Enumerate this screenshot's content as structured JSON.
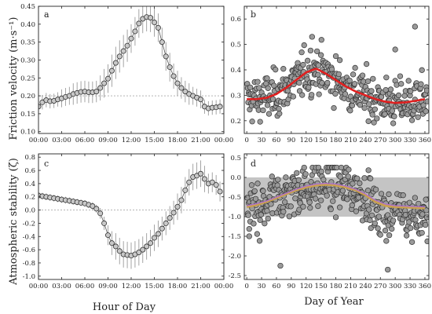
{
  "figure": {
    "ylabel_top": "Friction velocity (m·s⁻¹)",
    "ylabel_bottom": "Atmospheric stability (ζ)",
    "xlabel_left": "Hour of Day",
    "xlabel_right": "Day of Year"
  },
  "colors": {
    "marker_fill": "#9a9a9a",
    "marker_edge": "#333333",
    "fit_red": "#e02020",
    "fit_orange": "#c8a050",
    "fit_purple": "#b070d0",
    "band_gray": "#c4c4c4",
    "errorbar": "#9a9a9a",
    "refline": "#888888"
  },
  "chart_data": [
    {
      "panel": "a",
      "type": "scatter",
      "x_ticks": [
        "00:00",
        "03:00",
        "06:00",
        "09:00",
        "12:00",
        "15:00",
        "18:00",
        "21:00",
        "00:00"
      ],
      "y_ticks": [
        "0.10",
        "0.15",
        "0.20",
        "0.25",
        "0.30",
        "0.35",
        "0.40",
        "0.45"
      ],
      "xlim": [
        0,
        24
      ],
      "ylim": [
        0.095,
        0.45
      ],
      "reference_y": 0.2,
      "x": [
        0,
        0.5,
        1,
        1.5,
        2,
        2.5,
        3,
        3.5,
        4,
        4.5,
        5,
        5.5,
        6,
        6.5,
        7,
        7.5,
        8,
        8.5,
        9,
        9.5,
        10,
        10.5,
        11,
        11.5,
        12,
        12.5,
        13,
        13.5,
        14,
        14.5,
        15,
        15.5,
        16,
        16.5,
        17,
        17.5,
        18,
        18.5,
        19,
        19.5,
        20,
        20.5,
        21,
        21.5,
        22,
        22.5,
        23,
        23.5
      ],
      "y": [
        0.17,
        0.182,
        0.188,
        0.185,
        0.186,
        0.19,
        0.193,
        0.197,
        0.2,
        0.205,
        0.208,
        0.211,
        0.212,
        0.21,
        0.21,
        0.212,
        0.222,
        0.235,
        0.248,
        0.27,
        0.292,
        0.31,
        0.325,
        0.34,
        0.36,
        0.38,
        0.402,
        0.415,
        0.42,
        0.418,
        0.405,
        0.39,
        0.35,
        0.31,
        0.28,
        0.255,
        0.235,
        0.222,
        0.212,
        0.205,
        0.2,
        0.195,
        0.19,
        0.17,
        0.165,
        0.167,
        0.168,
        0.17
      ],
      "err": [
        0.02,
        0.02,
        0.02,
        0.02,
        0.02,
        0.02,
        0.025,
        0.025,
        0.025,
        0.03,
        0.03,
        0.03,
        0.03,
        0.03,
        0.03,
        0.03,
        0.035,
        0.04,
        0.04,
        0.045,
        0.045,
        0.045,
        0.045,
        0.045,
        0.04,
        0.04,
        0.04,
        0.04,
        0.04,
        0.04,
        0.04,
        0.04,
        0.04,
        0.04,
        0.04,
        0.035,
        0.035,
        0.03,
        0.03,
        0.03,
        0.025,
        0.025,
        0.025,
        0.02,
        0.02,
        0.02,
        0.02,
        0.02
      ]
    },
    {
      "panel": "b",
      "type": "scatter",
      "x_ticks": [
        "0",
        "30",
        "60",
        "90",
        "120",
        "150",
        "180",
        "210",
        "240",
        "270",
        "300",
        "330",
        "360"
      ],
      "y_ticks": [
        "0.2",
        "0.3",
        "0.4",
        "0.5",
        "0.6"
      ],
      "xlim": [
        -5,
        368
      ],
      "ylim": [
        0.15,
        0.65
      ],
      "fit_curve": {
        "x": [
          0,
          20,
          40,
          60,
          80,
          100,
          120,
          140,
          160,
          180,
          200,
          220,
          240,
          260,
          280,
          300,
          320,
          340,
          360
        ],
        "y": [
          0.285,
          0.285,
          0.29,
          0.305,
          0.33,
          0.36,
          0.39,
          0.405,
          0.385,
          0.36,
          0.335,
          0.315,
          0.3,
          0.285,
          0.275,
          0.27,
          0.272,
          0.278,
          0.285
        ]
      }
    },
    {
      "panel": "c",
      "type": "scatter",
      "x_ticks": [
        "00:00",
        "03:00",
        "06:00",
        "09:00",
        "12:00",
        "15:00",
        "18:00",
        "21:00",
        "00:00"
      ],
      "y_ticks": [
        "-1.0",
        "-0.8",
        "-0.6",
        "-0.4",
        "-0.2",
        "0.0",
        "0.2",
        "0.4",
        "0.6",
        "0.8"
      ],
      "xlim": [
        0,
        24
      ],
      "ylim": [
        -1.05,
        0.85
      ],
      "reference_y": 0.0,
      "x": [
        0,
        0.5,
        1,
        1.5,
        2,
        2.5,
        3,
        3.5,
        4,
        4.5,
        5,
        5.5,
        6,
        6.5,
        7,
        7.5,
        8,
        8.5,
        9,
        9.5,
        10,
        10.5,
        11,
        11.5,
        12,
        12.5,
        13,
        13.5,
        14,
        14.5,
        15,
        15.5,
        16,
        16.5,
        17,
        17.5,
        18,
        18.5,
        19,
        19.5,
        20,
        20.5,
        21,
        21.5,
        22,
        22.5,
        23,
        23.5
      ],
      "y": [
        0.22,
        0.21,
        0.2,
        0.19,
        0.18,
        0.17,
        0.16,
        0.15,
        0.14,
        0.13,
        0.12,
        0.11,
        0.1,
        0.08,
        0.06,
        0.02,
        -0.05,
        -0.2,
        -0.38,
        -0.5,
        -0.55,
        -0.62,
        -0.67,
        -0.68,
        -0.69,
        -0.67,
        -0.64,
        -0.6,
        -0.55,
        -0.5,
        -0.42,
        -0.36,
        -0.28,
        -0.2,
        -0.12,
        -0.04,
        0.05,
        0.15,
        0.3,
        0.42,
        0.5,
        0.52,
        0.55,
        0.47,
        0.4,
        0.42,
        0.38,
        0.28
      ],
      "err": [
        0.05,
        0.05,
        0.05,
        0.05,
        0.05,
        0.05,
        0.05,
        0.05,
        0.05,
        0.05,
        0.05,
        0.05,
        0.05,
        0.05,
        0.06,
        0.06,
        0.08,
        0.1,
        0.15,
        0.18,
        0.2,
        0.2,
        0.2,
        0.2,
        0.2,
        0.2,
        0.2,
        0.2,
        0.2,
        0.2,
        0.2,
        0.2,
        0.18,
        0.18,
        0.18,
        0.18,
        0.2,
        0.2,
        0.2,
        0.2,
        0.2,
        0.2,
        0.2,
        0.2,
        0.15,
        0.15,
        0.15,
        0.15
      ]
    },
    {
      "panel": "d",
      "type": "scatter",
      "x_ticks": [
        "0",
        "30",
        "60",
        "90",
        "120",
        "150",
        "180",
        "210",
        "240",
        "270",
        "300",
        "330",
        "360"
      ],
      "y_ticks": [
        "-2.5",
        "-2.0",
        "-1.5",
        "-1.0",
        "-0.5",
        "0.0",
        "0.5"
      ],
      "xlim": [
        -5,
        368
      ],
      "ylim": [
        -2.6,
        0.6
      ],
      "band": [
        -1.0,
        0.0
      ],
      "fit_orange": {
        "x": [
          0,
          20,
          40,
          60,
          80,
          100,
          120,
          140,
          160,
          180,
          200,
          220,
          240,
          260,
          280,
          300,
          320,
          340,
          360
        ],
        "y": [
          -0.75,
          -0.7,
          -0.62,
          -0.52,
          -0.42,
          -0.32,
          -0.25,
          -0.2,
          -0.18,
          -0.2,
          -0.25,
          -0.32,
          -0.45,
          -0.62,
          -0.72,
          -0.75,
          -0.76,
          -0.77,
          -0.78
        ]
      },
      "fit_purple": {
        "x": [
          0,
          20,
          40,
          60,
          80,
          100,
          120,
          140,
          160,
          180,
          200,
          220,
          240,
          260,
          280,
          300,
          320,
          340,
          360
        ],
        "y": [
          -0.72,
          -0.67,
          -0.6,
          -0.5,
          -0.4,
          -0.3,
          -0.22,
          -0.17,
          -0.15,
          -0.17,
          -0.22,
          -0.3,
          -0.42,
          -0.58,
          -0.68,
          -0.72,
          -0.73,
          -0.74,
          -0.75
        ]
      }
    }
  ]
}
